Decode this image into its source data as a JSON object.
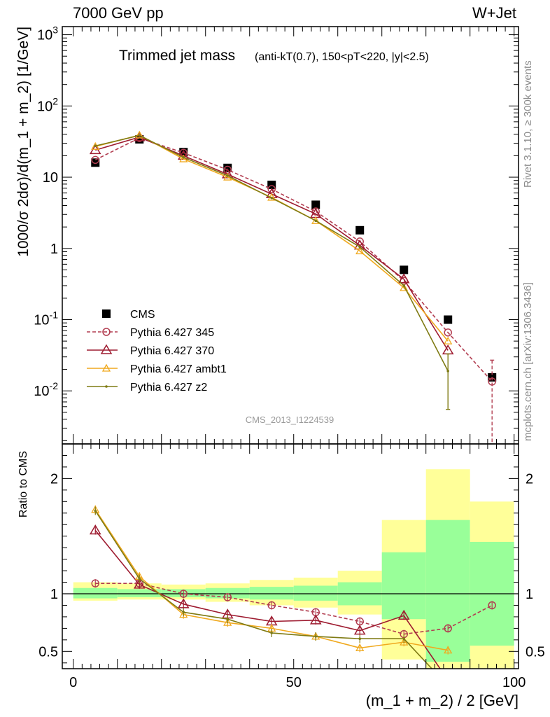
{
  "header": {
    "left": "7000 GeV pp",
    "right": "W+Jet"
  },
  "side_labels": {
    "rivet": "Rivet 3.1.10, ≥ 300k events",
    "mcplots": "mcplots.cern.ch [arXiv:1306.3436]"
  },
  "plot_title": {
    "main": "Trimmed jet mass",
    "cuts": "(anti-kT(0.7), 150<pT<220, |y|<2.5)"
  },
  "analysis_tag": "CMS_2013_I1224539",
  "colors": {
    "cms": "#000000",
    "p345": "#b23d50",
    "p370": "#9e1b30",
    "ambt1": "#f0a91e",
    "z2": "#7f7b14",
    "band_inner": "#99ff99",
    "band_outer": "#ffff99"
  },
  "chart_data": [
    {
      "type": "scatter",
      "panel": "main",
      "ylabel": "1000/σ 2dσ)/d(m_1 + m_2) [1/GeV]",
      "yscale": "log",
      "ylim": [
        0.0018,
        1300
      ],
      "xlim": [
        -2.5,
        101
      ],
      "y_ticks": [
        {
          "value": 1000,
          "label": "10^3"
        },
        {
          "value": 100,
          "label": "10^2"
        },
        {
          "value": 10,
          "label": "10"
        },
        {
          "value": 1,
          "label": "1"
        },
        {
          "value": 0.1,
          "label": "10^-1"
        },
        {
          "value": 0.01,
          "label": "10^-2"
        }
      ],
      "x": [
        5,
        15,
        25,
        35,
        45,
        55,
        65,
        75,
        85,
        95
      ],
      "legend_position": "lower-left",
      "series": [
        {
          "key": "cms",
          "name": "CMS",
          "style": "square",
          "values": [
            16,
            34,
            22.5,
            13.5,
            7.8,
            4.1,
            1.8,
            0.5,
            0.1,
            0.0155
          ]
        },
        {
          "key": "p345",
          "name": "Pythia 6.427 345",
          "style": "circle-dashed",
          "values": [
            17.5,
            35.5,
            22,
            12.7,
            6.8,
            3.3,
            1.25,
            0.35,
            0.066,
            0.0135
          ],
          "err_low": [
            null,
            null,
            null,
            null,
            null,
            null,
            null,
            null,
            null,
            0.0018
          ],
          "err_high": [
            null,
            null,
            null,
            null,
            null,
            null,
            null,
            null,
            null,
            0.027
          ]
        },
        {
          "key": "p370",
          "name": "Pythia 6.427 370",
          "style": "triangle",
          "values": [
            24,
            36.5,
            20,
            11,
            5.8,
            3.05,
            1.1,
            0.37,
            0.037,
            null
          ]
        },
        {
          "key": "ambt1",
          "name": "Pythia 6.427 ambt1",
          "style": "triangle-small",
          "values": [
            27,
            39,
            18,
            10,
            5.2,
            2.45,
            0.92,
            0.28,
            0.05,
            null
          ]
        },
        {
          "key": "z2",
          "name": "Pythia 6.427 z2",
          "style": "dot",
          "values": [
            27.5,
            38.5,
            19,
            10.5,
            5.1,
            2.45,
            1.05,
            0.3,
            0.019,
            null
          ],
          "err_low": [
            null,
            null,
            null,
            null,
            null,
            null,
            null,
            null,
            0.0055,
            null
          ],
          "err_high": [
            null,
            null,
            null,
            null,
            null,
            null,
            null,
            null,
            0.033,
            null
          ]
        }
      ]
    },
    {
      "type": "line",
      "panel": "ratio",
      "ylabel": "Ratio to CMS",
      "xlabel": "(m_1 + m_2) / 2 [GeV]",
      "ylim": [
        0.35,
        2.3
      ],
      "xlim": [
        -2.5,
        101
      ],
      "x_ticks": [
        0,
        50,
        100
      ],
      "y_ticks": [
        0.5,
        1,
        2
      ],
      "bands": {
        "edges": [
          0,
          10,
          20,
          30,
          40,
          50,
          60,
          70,
          80,
          90,
          100
        ],
        "inner_low": [
          0.96,
          0.97,
          0.97,
          0.96,
          0.95,
          0.94,
          0.9,
          0.78,
          0.41,
          0.55
        ],
        "inner_high": [
          1.05,
          1.04,
          1.04,
          1.05,
          1.06,
          1.07,
          1.1,
          1.36,
          1.64,
          1.45
        ],
        "outer_low": [
          0.94,
          0.95,
          0.95,
          0.93,
          0.9,
          0.88,
          0.82,
          0.43,
          0.35,
          0.35
        ],
        "outer_high": [
          1.1,
          1.09,
          1.08,
          1.09,
          1.12,
          1.14,
          1.2,
          1.64,
          2.08,
          1.8
        ]
      },
      "series": [
        {
          "key": "p345",
          "name": "Pythia 6.427 345",
          "values": [
            1.09,
            1.09,
            1.0,
            0.97,
            0.9,
            0.84,
            0.76,
            0.65,
            0.7,
            0.9
          ]
        },
        {
          "key": "p370",
          "name": "Pythia 6.427 370",
          "values": [
            1.55,
            1.08,
            0.91,
            0.82,
            0.76,
            0.77,
            0.68,
            0.81,
            0.25,
            null
          ]
        },
        {
          "key": "ambt1",
          "name": "Pythia 6.427 ambt1",
          "values": [
            1.73,
            1.15,
            0.82,
            0.75,
            0.7,
            0.63,
            0.53,
            0.58,
            0.51,
            null
          ]
        },
        {
          "key": "z2",
          "name": "Pythia 6.427 z2",
          "values": [
            1.72,
            1.13,
            0.84,
            0.78,
            0.66,
            0.63,
            0.61,
            0.61,
            0.2,
            null
          ]
        }
      ]
    }
  ]
}
